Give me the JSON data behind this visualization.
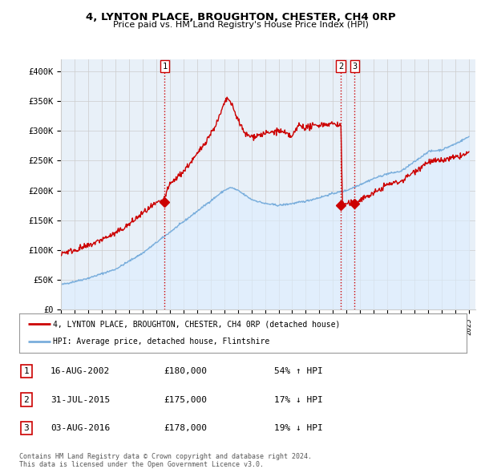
{
  "title": "4, LYNTON PLACE, BROUGHTON, CHESTER, CH4 0RP",
  "subtitle": "Price paid vs. HM Land Registry's House Price Index (HPI)",
  "ylabel_ticks": [
    "£0",
    "£50K",
    "£100K",
    "£150K",
    "£200K",
    "£250K",
    "£300K",
    "£350K",
    "£400K"
  ],
  "ytick_vals": [
    0,
    50000,
    100000,
    150000,
    200000,
    250000,
    300000,
    350000,
    400000
  ],
  "ylim": [
    0,
    420000
  ],
  "xlim_start": 1995.0,
  "xlim_end": 2025.5,
  "xtick_years": [
    1995,
    1996,
    1997,
    1998,
    1999,
    2000,
    2001,
    2002,
    2003,
    2004,
    2005,
    2006,
    2007,
    2008,
    2009,
    2010,
    2011,
    2012,
    2013,
    2014,
    2015,
    2016,
    2017,
    2018,
    2019,
    2020,
    2021,
    2022,
    2023,
    2024,
    2025
  ],
  "hpi_line_color": "#7aaedc",
  "hpi_fill_color": "#ddeeff",
  "price_line_color": "#cc0000",
  "vline_color": "#cc0000",
  "marker_color": "#cc0000",
  "transaction1_x": 2002.62,
  "transaction1_y": 180000,
  "transaction2_x": 2015.58,
  "transaction2_y": 175000,
  "transaction3_x": 2016.59,
  "transaction3_y": 178000,
  "legend_property_label": "4, LYNTON PLACE, BROUGHTON, CHESTER, CH4 0RP (detached house)",
  "legend_hpi_label": "HPI: Average price, detached house, Flintshire",
  "table_rows": [
    [
      "1",
      "16-AUG-2002",
      "£180,000",
      "54% ↑ HPI"
    ],
    [
      "2",
      "31-JUL-2015",
      "£175,000",
      "17% ↓ HPI"
    ],
    [
      "3",
      "03-AUG-2016",
      "£178,000",
      "19% ↓ HPI"
    ]
  ],
  "footer_text": "Contains HM Land Registry data © Crown copyright and database right 2024.\nThis data is licensed under the Open Government Licence v3.0.",
  "background_color": "#ffffff",
  "grid_color": "#cccccc",
  "plot_bg_color": "#e8f0f8"
}
